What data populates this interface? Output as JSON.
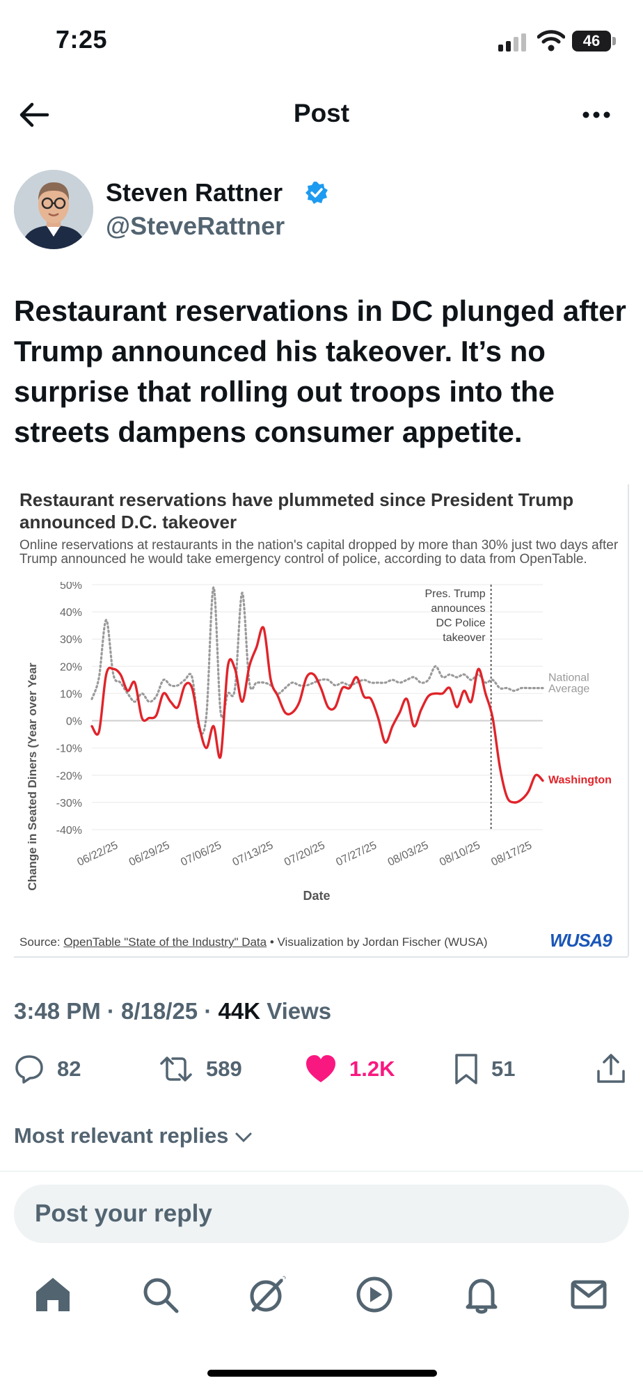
{
  "status": {
    "time": "7:25",
    "battery": "46"
  },
  "header": {
    "title": "Post"
  },
  "author": {
    "name": "Steven Rattner",
    "handle": "@SteveRattner"
  },
  "tweet": {
    "text": "Restaurant reservations in DC plunged after Trump announced his takeover. It’s no surprise that rolling out troops into the streets dampens consumer appetite."
  },
  "chart": {
    "title": "Restaurant reservations have plummeted since President Trump announced D.C. takeover",
    "subtitle": "Online reservations at restaurants in the nation's capital dropped by more than 30% just two days after Trump announced he would take emergency control of police, according to data from OpenTable.",
    "source_prefix": "Source: ",
    "source_link": "OpenTable \"State of the Industry\" Data",
    "source_suffix": " • Visualization by Jordan Fischer (WUSA)",
    "logo": "WUSA9",
    "annotation": [
      "Pres. Trump",
      "announces",
      "DC Police",
      "takeover"
    ],
    "national_label": [
      "National",
      "Average"
    ],
    "washington_label": "Washington"
  },
  "chart_data": {
    "type": "line",
    "xlabel": "Date",
    "ylabel": "Change in Seated Diners (Year over Year",
    "x_ticks": [
      "06/22/25",
      "06/29/25",
      "07/06/25",
      "07/13/25",
      "07/20/25",
      "07/27/25",
      "08/03/25",
      "08/10/25",
      "08/17/25"
    ],
    "y_ticks": [
      "50%",
      "40%",
      "30%",
      "20%",
      "10%",
      "0%",
      "-10%",
      "-20%",
      "-30%",
      "-40%"
    ],
    "ylim": [
      -40,
      50
    ],
    "grid": "horizontal",
    "legend": "end-of-line labels",
    "event_marker": "08/11/25",
    "x_start": "06/18/25",
    "x_end": "08/18/25",
    "series": [
      {
        "name": "Washington",
        "color": "#e0242a",
        "style": "solid",
        "values": [
          -2,
          -4,
          17,
          19,
          17,
          11,
          14,
          1,
          1,
          2,
          10,
          7,
          5,
          13,
          12,
          -2,
          -10,
          -2,
          -13,
          20,
          19,
          7,
          20,
          27,
          34,
          15,
          9,
          3,
          3,
          7,
          16,
          17,
          12,
          5,
          5,
          12,
          12,
          16,
          9,
          8,
          1,
          -8,
          -2,
          3,
          8,
          -2,
          4,
          9,
          10,
          10,
          12,
          5,
          11,
          7,
          19,
          10,
          1,
          -17,
          -28,
          -30,
          -29,
          -26,
          -20,
          -22
        ]
      },
      {
        "name": "National Average",
        "color": "#9a9a9a",
        "style": "dotted",
        "values": [
          8,
          16,
          37,
          17,
          14,
          10,
          7,
          10,
          7,
          9,
          15,
          13,
          13,
          15,
          16,
          -3,
          2,
          49,
          3,
          10,
          12,
          47,
          14,
          14,
          14,
          13,
          10,
          12,
          14,
          13,
          13,
          14,
          15,
          15,
          13,
          14,
          13,
          14,
          15,
          14,
          14,
          14,
          15,
          14,
          15,
          16,
          14,
          15,
          20,
          16,
          17,
          16,
          17,
          15,
          17,
          14,
          15,
          12,
          12,
          11,
          12,
          12,
          12,
          12
        ]
      }
    ]
  },
  "meta": {
    "time_date": "3:48 PM · 8/18/25 · ",
    "views_count": "44K",
    "views_label": " Views"
  },
  "actions": {
    "replies": "82",
    "reposts": "589",
    "likes": "1.2K",
    "bookmarks": "51"
  },
  "replies_sort": "Most relevant replies",
  "reply_placeholder": "Post your reply",
  "icons": {
    "accent": "#1d9bf0",
    "like": "#f91880"
  }
}
